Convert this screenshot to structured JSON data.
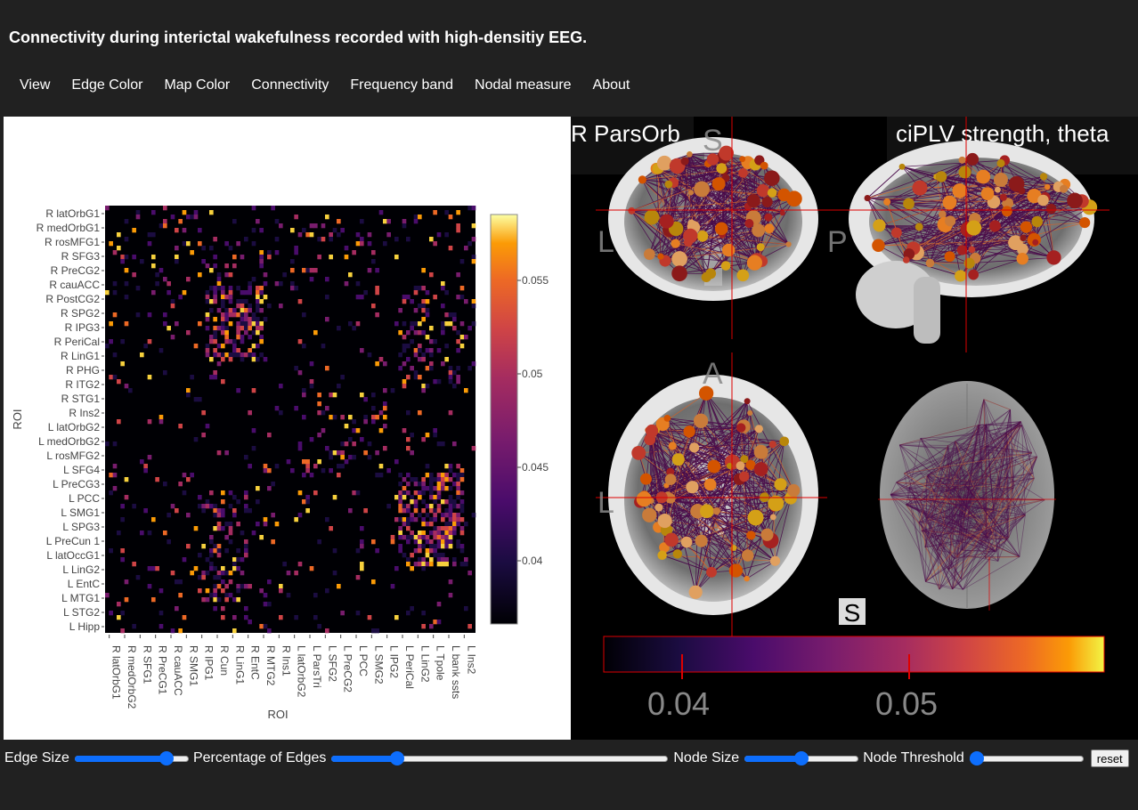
{
  "title": "Connectivity during interictal wakefulness recorded with high-densitiy EEG.",
  "menu": [
    "View",
    "Edge Color",
    "Map Color",
    "Connectivity",
    "Frequency band",
    "Nodal measure",
    "About"
  ],
  "heatmap": {
    "y_labels": [
      "R latOrbG1",
      "R medOrbG1",
      "R rosMFG1",
      "R SFG3",
      "R PreCG2",
      "R cauACC",
      "R PostCG2",
      "R SPG2",
      "R IPG3",
      "R PeriCal",
      "R LinG1",
      "R PHG",
      "R ITG2",
      "R STG1",
      "R Ins2",
      "L latOrbG2",
      "L medOrbG2",
      "L rosMFG2",
      "L SFG4",
      "L PreCG3",
      "L PCC",
      "L SMG1",
      "L SPG3",
      "L PreCun 1",
      "L latOccG1",
      "L LinG2",
      "L EntC",
      "L MTG1",
      "L STG2",
      "L Hipp"
    ],
    "x_labels": [
      "R latOrbG1",
      "R medOrbG2",
      "R SFG1",
      "R PreCG1",
      "R cauACC",
      "R SMG1",
      "R IPG1",
      "R Cun",
      "R LinG1",
      "R EntC",
      "R MTG2",
      "R Ins1",
      "L latOrbG2",
      "L ParsTri",
      "L SFG2",
      "L PreCG2",
      "L PCC",
      "L SMG2",
      "L IPG2",
      "L PeriCal",
      "L LinG2",
      "L Tpole",
      "L bank ssts",
      "L Ins2"
    ],
    "xlabel": "ROI",
    "ylabel": "ROI",
    "colorbar_ticks": [
      "0.055",
      "0.05",
      "0.045",
      "0.04"
    ]
  },
  "brain": {
    "roi_label": "R ParsOrb",
    "measure_label": "ciPLV strength, theta",
    "orient_s": "S",
    "orient_l1": "L",
    "orient_p": "P",
    "orient_a": "A",
    "orient_l2": "L",
    "marker": "S",
    "colorbar_ticks": [
      "0.04",
      "0.05"
    ]
  },
  "controls": {
    "edge_size_label": "Edge Size",
    "edge_size_value": 0.85,
    "pct_edges_label": "Percentage of Edges",
    "pct_edges_value": 0.18,
    "node_size_label": "Node Size",
    "node_size_value": 0.5,
    "node_threshold_label": "Node Threshold",
    "node_threshold_value": 0.0,
    "reset_label": "reset"
  },
  "colors": {
    "background": "#212121",
    "accent": "#0d6efd"
  }
}
